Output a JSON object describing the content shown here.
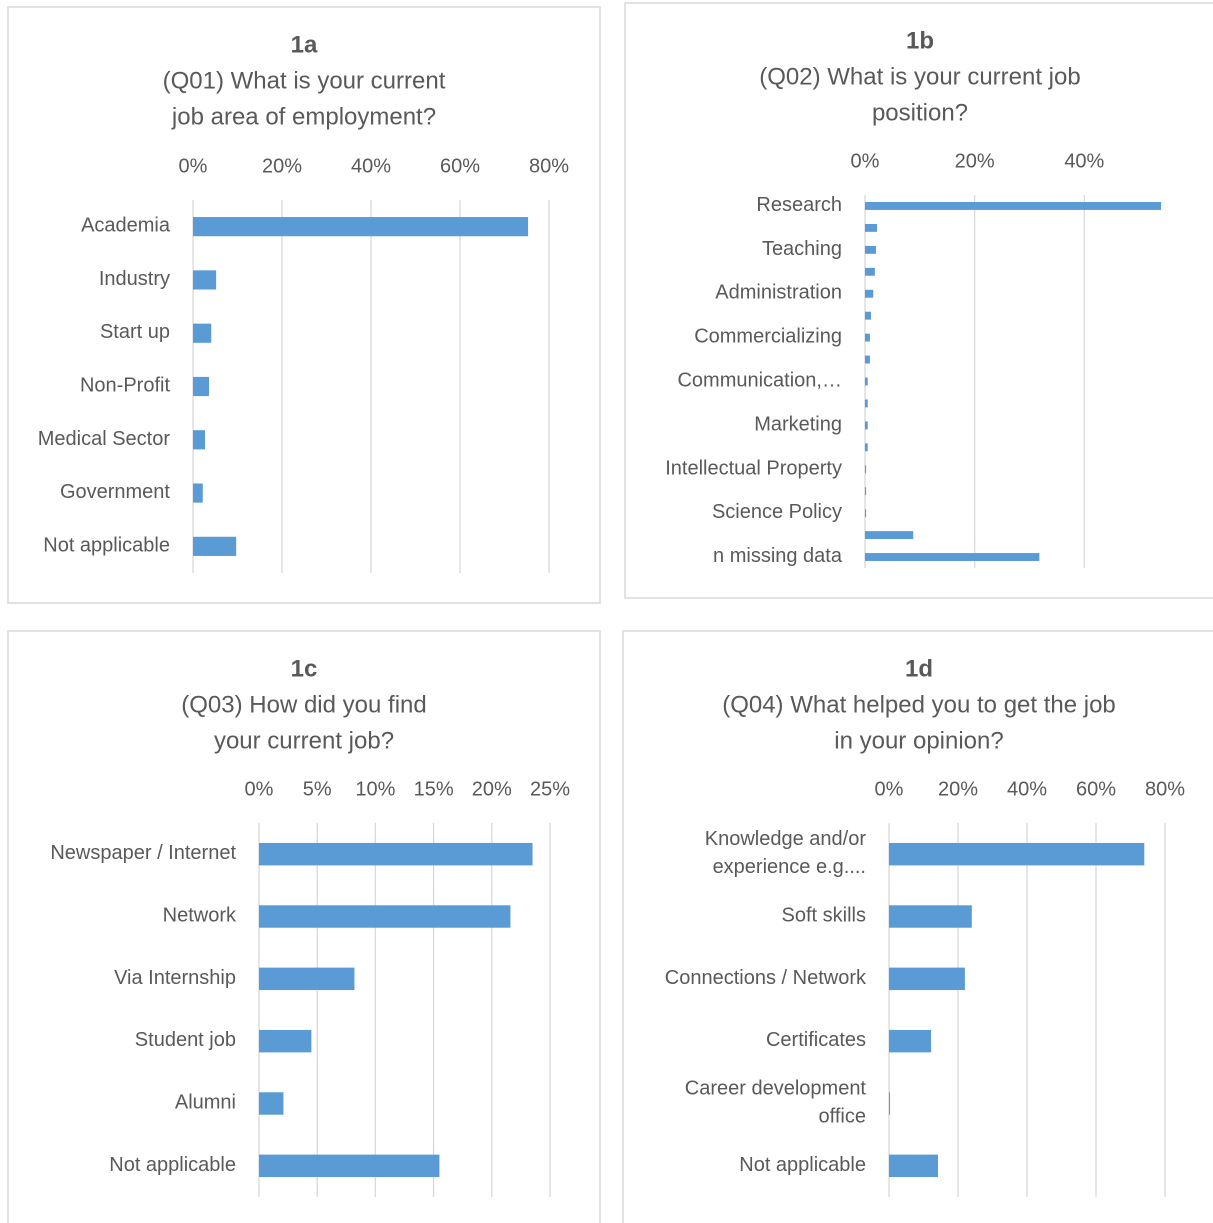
{
  "chart_data": [
    {
      "type": "bar",
      "label": "1a",
      "title": [
        "(Q01) What is your current",
        "job area of employment?"
      ],
      "categories": [
        "Academia",
        "Industry",
        "Start up",
        "Non-Profit",
        "Medical Sector",
        "Government",
        "Not applicable"
      ],
      "values": [
        75.3,
        5.2,
        4.1,
        3.6,
        2.7,
        2.2,
        9.7
      ],
      "color": "#5b9bd5",
      "xlim": [
        0,
        80
      ],
      "xticks": [
        {
          "value": 0,
          "label": "0%"
        },
        {
          "value": 20,
          "label": "20%"
        },
        {
          "value": 40,
          "label": "40%"
        },
        {
          "value": 60,
          "label": "60%"
        },
        {
          "value": 80,
          "label": "80%"
        }
      ],
      "grid": true
    },
    {
      "type": "bar",
      "label": "1b",
      "title": [
        "(Q02) What is your current job",
        "position?"
      ],
      "categories": [
        "Research",
        null,
        "Teaching",
        null,
        "Administration",
        null,
        "Commercializing",
        null,
        "Communication,…",
        null,
        "Marketing",
        null,
        "Intellectual Property",
        null,
        "Science Policy",
        null,
        "n missing data"
      ],
      "values": [
        54,
        2.2,
        2,
        1.8,
        1.5,
        1.1,
        0.9,
        0.9,
        0.5,
        0.5,
        0.5,
        0.5,
        0.2,
        0.2,
        0.2,
        8.8,
        31.8
      ],
      "color": "#5b9bd5",
      "xlim": [
        0,
        60
      ],
      "xticks": [
        {
          "value": 0,
          "label": "0%"
        },
        {
          "value": 20,
          "label": "20%"
        },
        {
          "value": 40,
          "label": "40%"
        }
      ],
      "grid": true
    },
    {
      "type": "bar",
      "label": "1c",
      "title": [
        "(Q03) How did you find",
        "your current job?"
      ],
      "categories": [
        "Newspaper / Internet",
        "Network",
        "Via Internship",
        "Student job",
        "Alumni",
        "Not applicable"
      ],
      "values": [
        23.5,
        21.6,
        8.2,
        4.5,
        2.1,
        15.5
      ],
      "color": "#5b9bd5",
      "xlim": [
        0,
        25
      ],
      "xticks": [
        {
          "value": 0,
          "label": "0%"
        },
        {
          "value": 5,
          "label": "5%"
        },
        {
          "value": 10,
          "label": "10%"
        },
        {
          "value": 15,
          "label": "15%"
        },
        {
          "value": 20,
          "label": "20%"
        },
        {
          "value": 25,
          "label": "25%"
        }
      ],
      "grid": true
    },
    {
      "type": "bar",
      "label": "1d",
      "title": [
        "(Q04) What helped you to get the job",
        "in your opinion?"
      ],
      "categories": [
        "Knowledge and/or experience e.g....",
        "Soft skills",
        "Connections / Network",
        "Certificates",
        "Career development office",
        "Not applicable"
      ],
      "values": [
        74,
        24,
        22,
        12.2,
        0.3,
        14.2
      ],
      "color": "#5b9bd5",
      "xlim": [
        0,
        80
      ],
      "xticks": [
        {
          "value": 0,
          "label": "0%"
        },
        {
          "value": 20,
          "label": "20%"
        },
        {
          "value": 40,
          "label": "40%"
        },
        {
          "value": 60,
          "label": "60%"
        },
        {
          "value": 80,
          "label": "80%"
        }
      ],
      "grid": true
    }
  ]
}
